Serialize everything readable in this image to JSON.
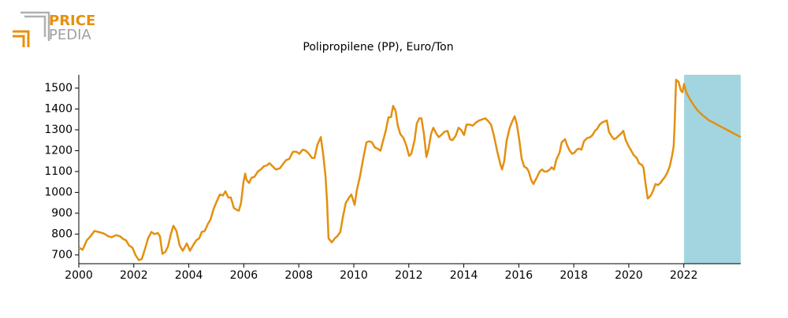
{
  "logo": {
    "line1": "PRICE",
    "line2": "PEDIA"
  },
  "chart_data": {
    "type": "line",
    "title": "Polipropilene (PP), Euro/Ton",
    "color": "#e3900f",
    "forecast_color": "#a2d5df",
    "forecast_region": [
      2022.01,
      2024.07
    ],
    "xlim": [
      2000,
      2024.07
    ],
    "ylim": [
      658,
      1564
    ],
    "xticks": [
      2000,
      2002,
      2004,
      2006,
      2008,
      2010,
      2012,
      2014,
      2016,
      2018,
      2020,
      2022
    ],
    "yticks": [
      700,
      800,
      900,
      1000,
      1100,
      1200,
      1300,
      1400,
      1500
    ],
    "x": [
      2000.0,
      2000.14,
      2000.29,
      2000.43,
      2000.57,
      2000.72,
      2000.86,
      2000.95,
      2001.06,
      2001.2,
      2001.35,
      2001.49,
      2001.63,
      2001.72,
      2001.83,
      2001.95,
      2002.06,
      2002.18,
      2002.29,
      2002.41,
      2002.52,
      2002.64,
      2002.75,
      2002.87,
      2002.95,
      2003.04,
      2003.15,
      2003.24,
      2003.35,
      2003.44,
      2003.55,
      2003.67,
      2003.78,
      2003.93,
      2004.04,
      2004.15,
      2004.27,
      2004.38,
      2004.47,
      2004.58,
      2004.7,
      2004.79,
      2004.9,
      2005.01,
      2005.13,
      2005.24,
      2005.33,
      2005.44,
      2005.53,
      2005.64,
      2005.76,
      2005.82,
      2005.9,
      2005.99,
      2006.05,
      2006.1,
      2006.19,
      2006.28,
      2006.39,
      2006.51,
      2006.62,
      2006.73,
      2006.85,
      2006.93,
      2007.05,
      2007.16,
      2007.31,
      2007.42,
      2007.54,
      2007.65,
      2007.79,
      2007.91,
      2008.02,
      2008.14,
      2008.25,
      2008.37,
      2008.48,
      2008.57,
      2008.68,
      2008.8,
      2008.88,
      2008.97,
      2009.03,
      2009.08,
      2009.2,
      2009.31,
      2009.4,
      2009.51,
      2009.6,
      2009.71,
      2009.83,
      2009.91,
      2010.03,
      2010.11,
      2010.23,
      2010.34,
      2010.46,
      2010.57,
      2010.66,
      2010.77,
      2010.86,
      2010.97,
      2011.09,
      2011.17,
      2011.26,
      2011.35,
      2011.43,
      2011.52,
      2011.6,
      2011.69,
      2011.81,
      2011.92,
      2012.01,
      2012.09,
      2012.21,
      2012.29,
      2012.38,
      2012.46,
      2012.55,
      2012.64,
      2012.72,
      2012.81,
      2012.89,
      2013.01,
      2013.09,
      2013.18,
      2013.29,
      2013.41,
      2013.5,
      2013.58,
      2013.7,
      2013.81,
      2013.9,
      2014.01,
      2014.1,
      2014.21,
      2014.33,
      2014.44,
      2014.56,
      2014.67,
      2014.79,
      2014.9,
      2014.99,
      2015.1,
      2015.21,
      2015.33,
      2015.39,
      2015.47,
      2015.56,
      2015.67,
      2015.76,
      2015.85,
      2015.93,
      2016.02,
      2016.1,
      2016.19,
      2016.3,
      2016.36,
      2016.45,
      2016.53,
      2016.65,
      2016.76,
      2016.85,
      2016.93,
      2017.02,
      2017.13,
      2017.19,
      2017.28,
      2017.36,
      2017.48,
      2017.56,
      2017.68,
      2017.76,
      2017.85,
      2017.94,
      2018.02,
      2018.11,
      2018.19,
      2018.28,
      2018.37,
      2018.48,
      2018.6,
      2018.68,
      2018.77,
      2018.85,
      2018.94,
      2019.03,
      2019.11,
      2019.2,
      2019.28,
      2019.37,
      2019.46,
      2019.54,
      2019.66,
      2019.74,
      2019.8,
      2019.89,
      2020.0,
      2020.09,
      2020.17,
      2020.29,
      2020.37,
      2020.49,
      2020.54,
      2020.6,
      2020.69,
      2020.8,
      2020.89,
      2020.97,
      2021.06,
      2021.15,
      2021.23,
      2021.32,
      2021.4,
      2021.49,
      2021.58,
      2021.63,
      2021.66,
      2021.72,
      2021.81,
      2021.89,
      2021.95,
      2022.01,
      2022.09,
      2022.21,
      2022.35,
      2022.49,
      2022.64,
      2022.78,
      2022.92,
      2023.07,
      2023.21,
      2023.35,
      2023.5,
      2023.64,
      2023.78,
      2023.93,
      2024.07
    ],
    "values": [
      735,
      725,
      770,
      790,
      815,
      810,
      805,
      800,
      790,
      785,
      795,
      790,
      775,
      770,
      745,
      735,
      700,
      675,
      680,
      730,
      780,
      810,
      800,
      805,
      790,
      705,
      715,
      740,
      800,
      840,
      815,
      745,
      720,
      755,
      720,
      745,
      770,
      780,
      810,
      815,
      850,
      870,
      920,
      955,
      990,
      985,
      1005,
      975,
      975,
      925,
      915,
      912,
      950,
      1050,
      1090,
      1060,
      1045,
      1070,
      1075,
      1100,
      1110,
      1125,
      1130,
      1140,
      1125,
      1110,
      1115,
      1135,
      1155,
      1160,
      1195,
      1195,
      1185,
      1205,
      1200,
      1185,
      1165,
      1165,
      1230,
      1265,
      1190,
      1080,
      950,
      780,
      760,
      780,
      790,
      810,
      880,
      950,
      975,
      990,
      940,
      1010,
      1080,
      1160,
      1240,
      1245,
      1240,
      1215,
      1210,
      1200,
      1260,
      1300,
      1360,
      1360,
      1415,
      1390,
      1320,
      1280,
      1260,
      1220,
      1175,
      1185,
      1250,
      1330,
      1355,
      1355,
      1280,
      1170,
      1210,
      1280,
      1310,
      1280,
      1265,
      1275,
      1290,
      1295,
      1255,
      1250,
      1270,
      1310,
      1300,
      1275,
      1325,
      1325,
      1320,
      1335,
      1345,
      1350,
      1355,
      1340,
      1325,
      1270,
      1200,
      1135,
      1110,
      1150,
      1250,
      1310,
      1340,
      1365,
      1325,
      1250,
      1165,
      1125,
      1115,
      1100,
      1060,
      1040,
      1070,
      1100,
      1110,
      1100,
      1100,
      1110,
      1120,
      1110,
      1155,
      1190,
      1240,
      1255,
      1225,
      1200,
      1185,
      1190,
      1205,
      1210,
      1205,
      1245,
      1260,
      1265,
      1275,
      1295,
      1305,
      1325,
      1335,
      1340,
      1345,
      1290,
      1270,
      1255,
      1260,
      1275,
      1285,
      1295,
      1250,
      1220,
      1200,
      1180,
      1165,
      1140,
      1130,
      1115,
      1050,
      970,
      985,
      1010,
      1040,
      1035,
      1045,
      1060,
      1075,
      1095,
      1125,
      1180,
      1220,
      1300,
      1540,
      1530,
      1490,
      1480,
      1520,
      1480,
      1450,
      1420,
      1395,
      1375,
      1360,
      1345,
      1335,
      1325,
      1315,
      1305,
      1295,
      1285,
      1275,
      1265
    ]
  }
}
